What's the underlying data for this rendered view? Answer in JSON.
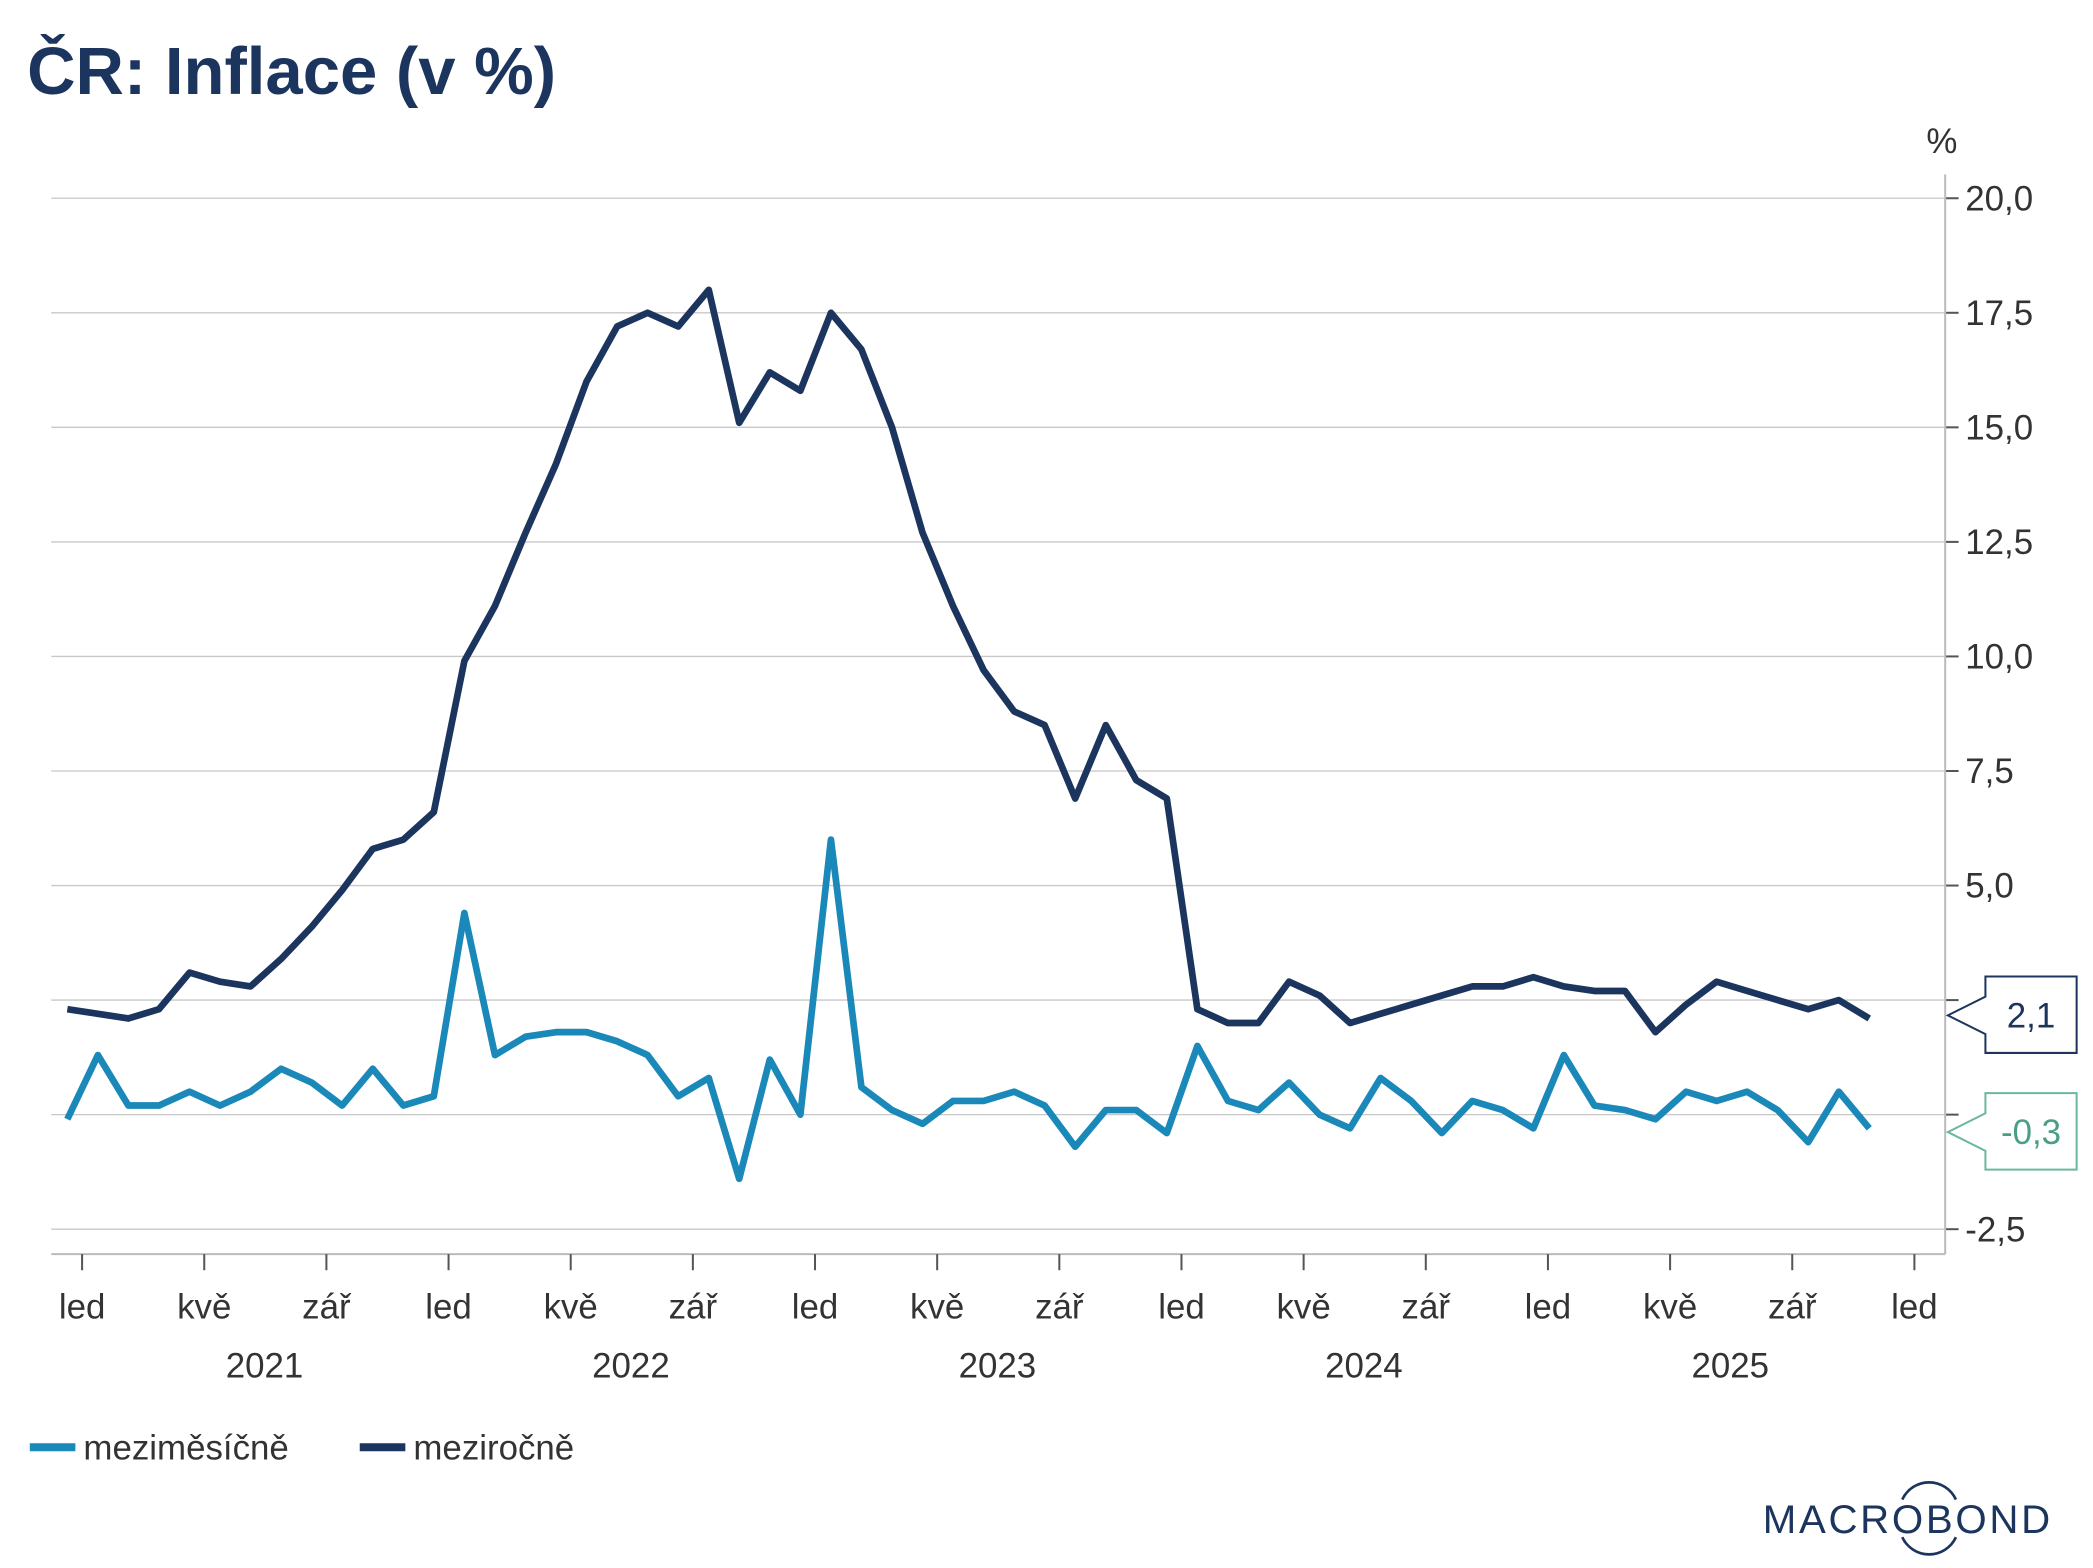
{
  "title": "ČR: Inflace (v %)",
  "logo": "MACROBOND",
  "colors": {
    "mom": "#1a88b8",
    "yoy": "#1c355e",
    "mom_label": "#4a9e88",
    "mom_label_border": "#6ab8a0"
  },
  "chart_data": {
    "type": "line",
    "title": "ČR: Inflace (v %)",
    "ylabel": "%",
    "ylim": [
      -3,
      20.6
    ],
    "yticks": [
      20.0,
      17.5,
      15.0,
      12.5,
      10.0,
      7.5,
      5.0,
      2.5,
      0.0,
      -2.5
    ],
    "ytick_labels": [
      "20,0",
      "17,5",
      "15,0",
      "12,5",
      "10,0",
      "7,5",
      "5,0",
      "",
      "",
      "-2,5"
    ],
    "x_start": "2020-12",
    "x_end": "2025-11",
    "x_month_labels": [
      "led",
      "kvě",
      "zář",
      "led",
      "kvě",
      "zář",
      "led",
      "kvě",
      "zář",
      "led",
      "kvě",
      "zář",
      "led",
      "kvě",
      "zář",
      "led"
    ],
    "x_year_labels": [
      "2021",
      "2022",
      "2023",
      "2024",
      "2025"
    ],
    "grid": true,
    "legend_placement": "bottom-left",
    "series": [
      {
        "name": "meziměsíčně",
        "color": "#1a88b8",
        "last_label": "-0,3",
        "values": [
          -0.1,
          1.3,
          0.2,
          0.2,
          0.5,
          0.2,
          0.5,
          1.0,
          0.7,
          0.2,
          1.0,
          0.2,
          0.4,
          4.4,
          1.3,
          1.7,
          1.8,
          1.8,
          1.6,
          1.3,
          0.4,
          0.8,
          -1.4,
          1.2,
          0.0,
          6.0,
          0.6,
          0.1,
          -0.2,
          0.3,
          0.3,
          0.5,
          0.2,
          -0.7,
          0.1,
          0.1,
          -0.4,
          1.5,
          0.3,
          0.1,
          0.7,
          0.0,
          -0.3,
          0.8,
          0.3,
          -0.4,
          0.3,
          0.1,
          -0.3,
          1.3,
          0.2,
          0.1,
          -0.1,
          0.5,
          0.3,
          0.5,
          0.1,
          -0.6,
          0.5,
          -0.3
        ]
      },
      {
        "name": "meziročně",
        "color": "#1c355e",
        "last_label": "2,1",
        "values": [
          2.3,
          2.2,
          2.1,
          2.3,
          3.1,
          2.9,
          2.8,
          3.4,
          4.1,
          4.9,
          5.8,
          6.0,
          6.6,
          9.9,
          11.1,
          12.7,
          14.2,
          16.0,
          17.2,
          17.5,
          17.2,
          18.0,
          15.1,
          16.2,
          15.8,
          17.5,
          16.7,
          15.0,
          12.7,
          11.1,
          9.7,
          8.8,
          8.5,
          6.9,
          8.5,
          7.3,
          6.9,
          2.3,
          2.0,
          2.0,
          2.9,
          2.6,
          2.0,
          2.2,
          2.4,
          2.6,
          2.8,
          2.8,
          3.0,
          2.8,
          2.7,
          2.7,
          1.8,
          2.4,
          2.9,
          2.7,
          2.5,
          2.3,
          2.5,
          2.1
        ]
      }
    ]
  }
}
